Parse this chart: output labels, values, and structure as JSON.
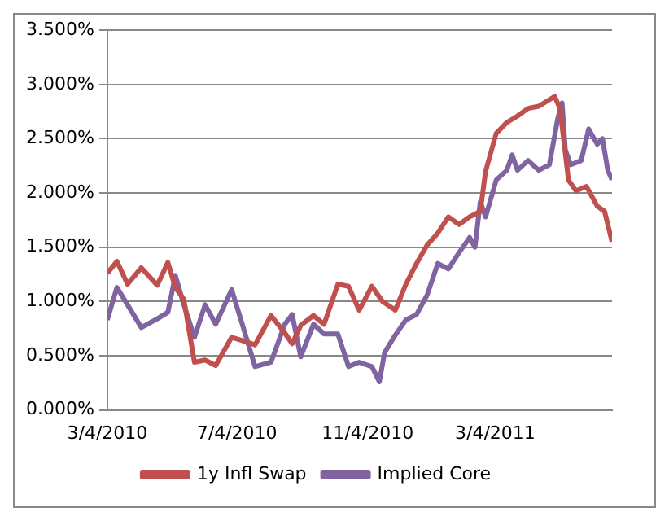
{
  "chart_data": {
    "type": "line",
    "xlim": [
      "2010-03-04",
      "2011-06-22"
    ],
    "xticks": [
      {
        "value": "2010-03-04",
        "label": "3/4/2010"
      },
      {
        "value": "2010-07-04",
        "label": "7/4/2010"
      },
      {
        "value": "2010-11-04",
        "label": "11/4/2010"
      },
      {
        "value": "2011-03-04",
        "label": "3/4/2011"
      }
    ],
    "ylim": [
      0,
      3.5
    ],
    "yticks": [
      {
        "value": 0,
        "label": "0.000%"
      },
      {
        "value": 0.5,
        "label": "0.500%"
      },
      {
        "value": 1,
        "label": "1.000%"
      },
      {
        "value": 1.5,
        "label": "1.500%"
      },
      {
        "value": 2,
        "label": "2.000%"
      },
      {
        "value": 2.5,
        "label": "2.500%"
      },
      {
        "value": 3,
        "label": "3.000%"
      },
      {
        "value": 3.5,
        "label": "3.500%"
      }
    ],
    "grid": "y",
    "legend": "bottom",
    "marker": "none",
    "line_style": "solid",
    "series": [
      {
        "name": "1y Infl Swap",
        "color": "#c0504d",
        "x": [
          "2010-03-04",
          "2010-03-13",
          "2010-03-23",
          "2010-04-05",
          "2010-04-20",
          "2010-04-30",
          "2010-05-07",
          "2010-05-15",
          "2010-05-25",
          "2010-06-04",
          "2010-06-14",
          "2010-06-29",
          "2010-07-09",
          "2010-07-21",
          "2010-08-05",
          "2010-08-18",
          "2010-08-25",
          "2010-09-02",
          "2010-09-14",
          "2010-09-24",
          "2010-10-07",
          "2010-10-17",
          "2010-10-27",
          "2010-11-08",
          "2010-11-18",
          "2010-11-30",
          "2010-12-10",
          "2010-12-20",
          "2010-12-30",
          "2011-01-09",
          "2011-01-19",
          "2011-01-29",
          "2011-02-08",
          "2011-02-18",
          "2011-02-23",
          "2011-03-05",
          "2011-03-15",
          "2011-03-25",
          "2011-04-04",
          "2011-04-14",
          "2011-04-29",
          "2011-05-04",
          "2011-05-12",
          "2011-05-19",
          "2011-05-29",
          "2011-06-08",
          "2011-06-15",
          "2011-06-22"
        ],
        "values": [
          1.26,
          1.37,
          1.16,
          1.31,
          1.15,
          1.36,
          1.13,
          1.02,
          0.44,
          0.46,
          0.41,
          0.67,
          0.64,
          0.6,
          0.87,
          0.71,
          0.61,
          0.78,
          0.87,
          0.79,
          1.16,
          1.14,
          0.92,
          1.14,
          1.0,
          0.92,
          1.16,
          1.35,
          1.52,
          1.63,
          1.78,
          1.71,
          1.78,
          1.83,
          2.2,
          2.55,
          2.65,
          2.71,
          2.78,
          2.8,
          2.89,
          2.78,
          2.12,
          2.02,
          2.06,
          1.88,
          1.83,
          1.55
        ]
      },
      {
        "name": "Implied Core",
        "color": "#8064a2",
        "x": [
          "2010-03-04",
          "2010-03-13",
          "2010-03-23",
          "2010-04-05",
          "2010-04-20",
          "2010-04-30",
          "2010-05-07",
          "2010-05-15",
          "2010-05-25",
          "2010-06-04",
          "2010-06-14",
          "2010-06-29",
          "2010-07-09",
          "2010-07-21",
          "2010-08-05",
          "2010-08-18",
          "2010-08-25",
          "2010-09-02",
          "2010-09-14",
          "2010-09-24",
          "2010-10-07",
          "2010-10-17",
          "2010-10-27",
          "2010-11-08",
          "2010-11-15",
          "2010-11-20",
          "2010-11-30",
          "2010-12-10",
          "2010-12-20",
          "2010-12-30",
          "2011-01-09",
          "2011-01-19",
          "2011-01-29",
          "2011-02-08",
          "2011-02-13",
          "2011-02-18",
          "2011-02-23",
          "2011-03-05",
          "2011-03-15",
          "2011-03-20",
          "2011-03-25",
          "2011-04-04",
          "2011-04-14",
          "2011-04-24",
          "2011-05-02",
          "2011-05-06",
          "2011-05-09",
          "2011-05-14",
          "2011-05-24",
          "2011-05-31",
          "2011-06-08",
          "2011-06-13",
          "2011-06-18",
          "2011-06-22"
        ],
        "values": [
          0.83,
          1.13,
          0.97,
          0.76,
          0.84,
          0.9,
          1.24,
          0.97,
          0.67,
          0.97,
          0.79,
          1.11,
          0.79,
          0.4,
          0.44,
          0.79,
          0.88,
          0.49,
          0.79,
          0.7,
          0.7,
          0.4,
          0.44,
          0.4,
          0.26,
          0.53,
          0.69,
          0.83,
          0.88,
          1.06,
          1.35,
          1.3,
          1.45,
          1.59,
          1.5,
          1.92,
          1.78,
          2.12,
          2.21,
          2.35,
          2.21,
          2.3,
          2.21,
          2.26,
          2.69,
          2.83,
          2.4,
          2.26,
          2.3,
          2.59,
          2.45,
          2.5,
          2.21,
          2.12
        ]
      }
    ]
  }
}
